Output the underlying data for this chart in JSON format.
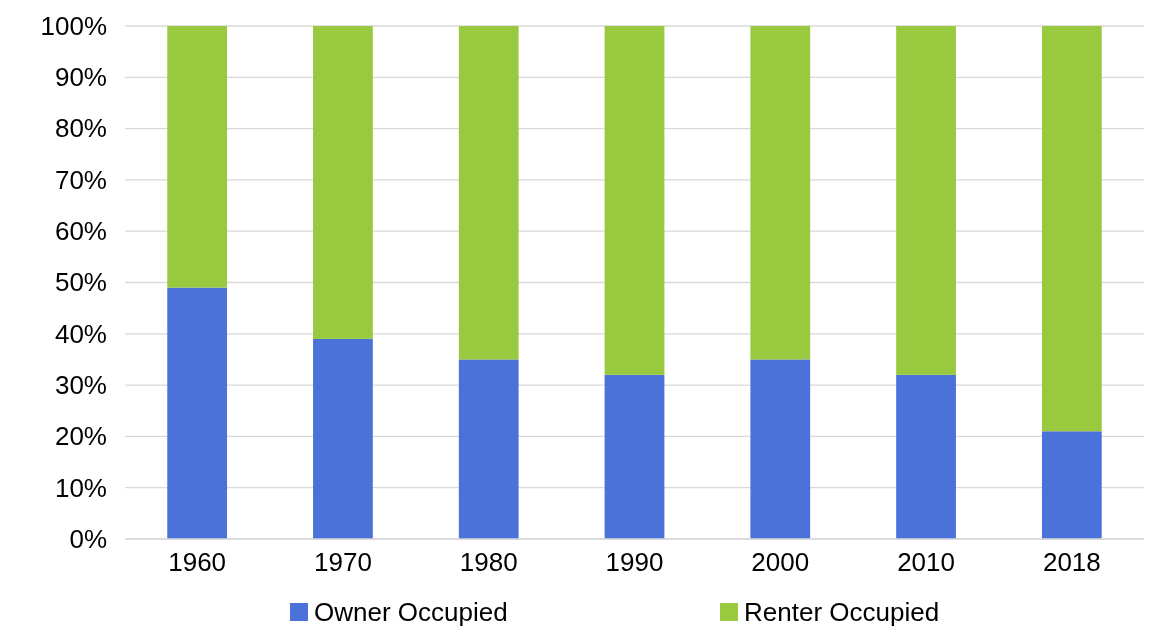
{
  "chart_data": {
    "type": "bar",
    "stacked": true,
    "categories": [
      "1960",
      "1970",
      "1980",
      "1990",
      "2000",
      "2010",
      "2018"
    ],
    "series": [
      {
        "name": "Owner Occupied",
        "color": "#4a72d9",
        "values": [
          49,
          39,
          35,
          32,
          35,
          32,
          21
        ]
      },
      {
        "name": "Renter Occupied",
        "color": "#99c93e",
        "values": [
          51,
          61,
          65,
          68,
          65,
          68,
          79
        ]
      }
    ],
    "ylim": [
      0,
      100
    ],
    "yticks": [
      {
        "value": 0,
        "label": "0%"
      },
      {
        "value": 10,
        "label": "10%"
      },
      {
        "value": 20,
        "label": "20%"
      },
      {
        "value": 30,
        "label": "30%"
      },
      {
        "value": 40,
        "label": "40%"
      },
      {
        "value": 50,
        "label": "50%"
      },
      {
        "value": 60,
        "label": "60%"
      },
      {
        "value": 70,
        "label": "70%"
      },
      {
        "value": 80,
        "label": "80%"
      },
      {
        "value": 90,
        "label": "90%"
      },
      {
        "value": 100,
        "label": "100%"
      }
    ],
    "grid": "y",
    "legend": "bottom"
  }
}
